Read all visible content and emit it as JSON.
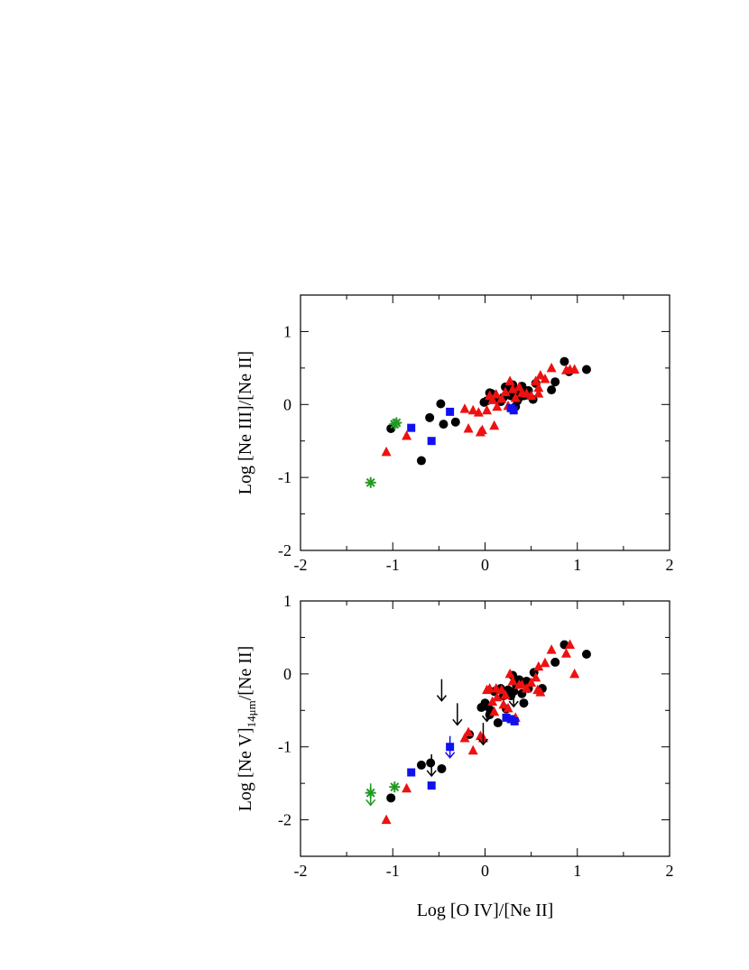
{
  "chart_data": [
    {
      "type": "scatter",
      "ylabel": "Log [Ne III]/[Ne II]",
      "xlabel": "",
      "xlim": [
        -2,
        2
      ],
      "ylim": [
        -2,
        1.5
      ],
      "xticks": [
        "-2",
        "-1",
        "0",
        "1",
        "2"
      ],
      "yticks": [
        "-2",
        "-1",
        "0",
        "1"
      ],
      "colors": {
        "black": "#000000",
        "red": "#ee1111",
        "blue": "#1111ee",
        "green": "#229922"
      },
      "series": [
        {
          "marker": "circle",
          "color": "black",
          "points": [
            [
              -1.02,
              -0.33
            ],
            [
              -0.69,
              -0.77
            ],
            [
              -0.6,
              -0.18
            ],
            [
              -0.48,
              0.01
            ],
            [
              -0.45,
              -0.27
            ],
            [
              -0.32,
              -0.24
            ],
            [
              -0.01,
              0.03
            ],
            [
              0.02,
              0.05
            ],
            [
              0.05,
              0.16
            ],
            [
              0.07,
              0.15
            ],
            [
              0.12,
              0.08
            ],
            [
              0.17,
              0.04
            ],
            [
              0.22,
              0.24
            ],
            [
              0.25,
              0.18
            ],
            [
              0.28,
              0.12
            ],
            [
              0.3,
              0.27
            ],
            [
              0.33,
              -0.03
            ],
            [
              0.36,
              0.08
            ],
            [
              0.38,
              0.14
            ],
            [
              0.4,
              0.25
            ],
            [
              0.42,
              0.12
            ],
            [
              0.47,
              0.19
            ],
            [
              0.52,
              0.07
            ],
            [
              0.55,
              0.29
            ],
            [
              0.72,
              0.2
            ],
            [
              0.76,
              0.31
            ],
            [
              0.86,
              0.59
            ],
            [
              0.91,
              0.45
            ],
            [
              1.1,
              0.48
            ],
            [
              0.3,
              0.18
            ],
            [
              0.35,
              0.05
            ],
            [
              0.2,
              0.1
            ]
          ]
        },
        {
          "marker": "triangle",
          "color": "red",
          "points": [
            [
              -1.07,
              -0.65
            ],
            [
              -0.85,
              -0.43
            ],
            [
              -0.22,
              -0.06
            ],
            [
              -0.18,
              -0.33
            ],
            [
              -0.13,
              -0.08
            ],
            [
              -0.07,
              -0.11
            ],
            [
              -0.05,
              -0.38
            ],
            [
              -0.03,
              -0.35
            ],
            [
              0.02,
              -0.08
            ],
            [
              0.05,
              0.12
            ],
            [
              0.08,
              0.06
            ],
            [
              0.1,
              -0.29
            ],
            [
              0.13,
              -0.03
            ],
            [
              0.18,
              0.08
            ],
            [
              0.22,
              0.17
            ],
            [
              0.27,
              0.32
            ],
            [
              0.3,
              0.21
            ],
            [
              0.33,
              0.09
            ],
            [
              0.37,
              0.24
            ],
            [
              0.4,
              0.16
            ],
            [
              0.45,
              0.15
            ],
            [
              0.5,
              0.12
            ],
            [
              0.55,
              0.32
            ],
            [
              0.58,
              0.23
            ],
            [
              0.6,
              0.4
            ],
            [
              0.65,
              0.35
            ],
            [
              0.72,
              0.5
            ],
            [
              0.88,
              0.47
            ],
            [
              0.92,
              0.48
            ],
            [
              0.97,
              0.48
            ],
            [
              0.12,
              0.14
            ],
            [
              0.25,
              -0.02
            ],
            [
              0.58,
              0.15
            ]
          ]
        },
        {
          "marker": "square",
          "color": "blue",
          "points": [
            [
              -0.8,
              -0.32
            ],
            [
              -0.58,
              -0.5
            ],
            [
              -0.38,
              -0.1
            ],
            [
              0.28,
              -0.05
            ],
            [
              0.31,
              -0.08
            ]
          ]
        },
        {
          "marker": "asterisk",
          "color": "green",
          "points": [
            [
              -1.24,
              -1.07
            ],
            [
              -0.98,
              -0.27
            ],
            [
              -0.96,
              -0.25
            ]
          ]
        }
      ]
    },
    {
      "type": "scatter",
      "ylabel": "Log [Ne V]",
      "ylabel_sub": "14μm",
      "ylabel_tail": "/[Ne II]",
      "xlabel": "Log [O IV]/[Ne II]",
      "xlim": [
        -2,
        2
      ],
      "ylim": [
        -2.5,
        1
      ],
      "xticks": [
        "-2",
        "-1",
        "0",
        "1",
        "2"
      ],
      "yticks": [
        "-2",
        "-1",
        "0",
        "1"
      ],
      "series": [
        {
          "marker": "circle",
          "color": "black",
          "points": [
            [
              -1.02,
              -1.7
            ],
            [
              -0.69,
              -1.25
            ],
            [
              -0.59,
              -1.22
            ],
            [
              -0.47,
              -1.3
            ],
            [
              -0.17,
              -0.83
            ],
            [
              -0.04,
              -0.46
            ],
            [
              0.0,
              -0.4
            ],
            [
              0.03,
              -0.45
            ],
            [
              0.06,
              -0.5
            ],
            [
              0.1,
              -0.24
            ],
            [
              0.14,
              -0.67
            ],
            [
              0.17,
              -0.2
            ],
            [
              0.2,
              -0.3
            ],
            [
              0.23,
              -0.48
            ],
            [
              0.25,
              -0.22
            ],
            [
              0.28,
              -0.3
            ],
            [
              0.31,
              -0.24
            ],
            [
              0.34,
              -0.15
            ],
            [
              0.37,
              -0.08
            ],
            [
              0.4,
              -0.27
            ],
            [
              0.42,
              -0.4
            ],
            [
              0.47,
              -0.2
            ],
            [
              0.53,
              0.02
            ],
            [
              0.62,
              -0.2
            ],
            [
              0.76,
              0.16
            ],
            [
              0.86,
              0.4
            ],
            [
              1.1,
              0.27
            ],
            [
              0.3,
              -0.02
            ],
            [
              0.45,
              -0.1
            ],
            [
              0.05,
              -0.56
            ]
          ]
        },
        {
          "marker": "triangle",
          "color": "red",
          "points": [
            [
              -1.07,
              -2.0
            ],
            [
              -0.85,
              -1.57
            ],
            [
              -0.22,
              -0.88
            ],
            [
              -0.18,
              -0.8
            ],
            [
              -0.13,
              -1.05
            ],
            [
              -0.05,
              -0.85
            ],
            [
              -0.02,
              -0.88
            ],
            [
              0.02,
              -0.22
            ],
            [
              0.05,
              -0.2
            ],
            [
              0.08,
              -0.38
            ],
            [
              0.1,
              -0.52
            ],
            [
              0.13,
              -0.32
            ],
            [
              0.18,
              -0.22
            ],
            [
              0.22,
              -0.29
            ],
            [
              0.25,
              -0.47
            ],
            [
              0.27,
              0.0
            ],
            [
              0.3,
              -0.1
            ],
            [
              0.33,
              -0.6
            ],
            [
              0.37,
              -0.15
            ],
            [
              0.4,
              -0.15
            ],
            [
              0.45,
              -0.2
            ],
            [
              0.5,
              -0.12
            ],
            [
              0.55,
              -0.05
            ],
            [
              0.58,
              0.1
            ],
            [
              0.6,
              -0.25
            ],
            [
              0.65,
              0.15
            ],
            [
              0.72,
              0.33
            ],
            [
              0.88,
              0.28
            ],
            [
              0.92,
              0.4
            ],
            [
              0.97,
              0.0
            ],
            [
              0.12,
              -0.2
            ],
            [
              0.2,
              -0.42
            ],
            [
              0.57,
              -0.22
            ]
          ]
        },
        {
          "marker": "square",
          "color": "blue",
          "points": [
            [
              -0.8,
              -1.35
            ],
            [
              -0.58,
              -1.53
            ],
            [
              -0.38,
              -1.0
            ],
            [
              0.23,
              -0.6
            ],
            [
              0.28,
              -0.62
            ],
            [
              0.32,
              -0.65
            ]
          ]
        },
        {
          "marker": "asterisk",
          "color": "green",
          "points": [
            [
              -1.24,
              -1.63
            ],
            [
              -0.98,
              -1.55
            ]
          ]
        },
        {
          "marker": "upper-limit",
          "color": "black",
          "points": [
            [
              -0.47,
              -0.22
            ],
            [
              -0.3,
              -0.55
            ],
            [
              -0.58,
              -1.25
            ],
            [
              -0.02,
              -0.82
            ],
            [
              0.02,
              -0.5
            ],
            [
              0.31,
              -0.3
            ]
          ]
        },
        {
          "marker": "upper-limit",
          "color": "blue",
          "points": [
            [
              -0.38,
              -1.0
            ]
          ]
        },
        {
          "marker": "upper-limit",
          "color": "green",
          "points": [
            [
              -1.24,
              -1.65
            ]
          ]
        }
      ]
    }
  ]
}
